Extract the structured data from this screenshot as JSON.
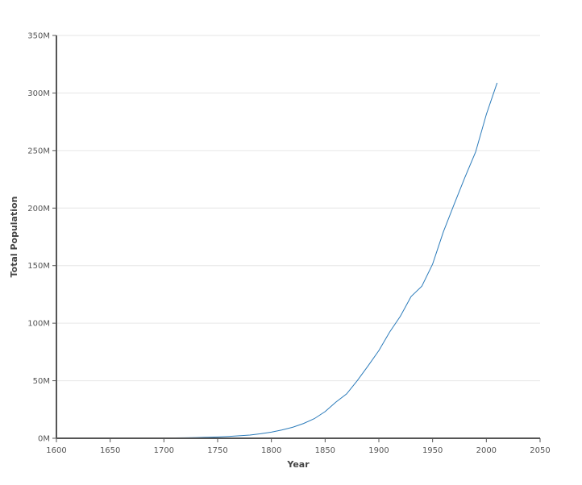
{
  "chart_data": {
    "type": "line",
    "title": "",
    "xlabel": "Year",
    "ylabel": "Total Population",
    "xlim": [
      1600,
      2050
    ],
    "ylim": [
      0,
      350000000
    ],
    "x_ticks": [
      {
        "value": 1600,
        "label": "1600"
      },
      {
        "value": 1650,
        "label": "1650"
      },
      {
        "value": 1700,
        "label": "1700"
      },
      {
        "value": 1750,
        "label": "1750"
      },
      {
        "value": 1800,
        "label": "1800"
      },
      {
        "value": 1850,
        "label": "1850"
      },
      {
        "value": 1900,
        "label": "1900"
      },
      {
        "value": 1950,
        "label": "1950"
      },
      {
        "value": 2000,
        "label": "2000"
      },
      {
        "value": 2050,
        "label": "2050"
      }
    ],
    "y_ticks": [
      {
        "value": 0,
        "label": "0M"
      },
      {
        "value": 50000000,
        "label": "50M"
      },
      {
        "value": 100000000,
        "label": "100M"
      },
      {
        "value": 150000000,
        "label": "150M"
      },
      {
        "value": 200000000,
        "label": "200M"
      },
      {
        "value": 250000000,
        "label": "250M"
      },
      {
        "value": 300000000,
        "label": "300M"
      },
      {
        "value": 350000000,
        "label": "350M"
      }
    ],
    "grid": true,
    "line_color": "#2b7bba",
    "series": [
      {
        "x": [
          1610,
          1620,
          1630,
          1640,
          1650,
          1660,
          1670,
          1680,
          1690,
          1700,
          1710,
          1720,
          1730,
          1740,
          1750,
          1760,
          1770,
          1780,
          1790,
          1800,
          1810,
          1820,
          1830,
          1840,
          1850,
          1860,
          1870,
          1880,
          1890,
          1900,
          1910,
          1920,
          1930,
          1940,
          1950,
          1960,
          1970,
          1980,
          1990,
          2000,
          2010
        ],
        "values": [
          350,
          2302,
          4646,
          26634,
          50368,
          75058,
          111935,
          151507,
          210372,
          250888,
          331711,
          466185,
          629445,
          905563,
          1170760,
          1593625,
          2148076,
          2780369,
          3929214,
          5308483,
          7239881,
          9638453,
          12860702,
          17063353,
          23191876,
          31443321,
          38558371,
          50189209,
          62979766,
          76212168,
          92228496,
          106021537,
          123202624,
          132164569,
          151325798,
          179323175,
          203211926,
          226545805,
          248709873,
          281421906,
          308745538
        ]
      }
    ]
  }
}
